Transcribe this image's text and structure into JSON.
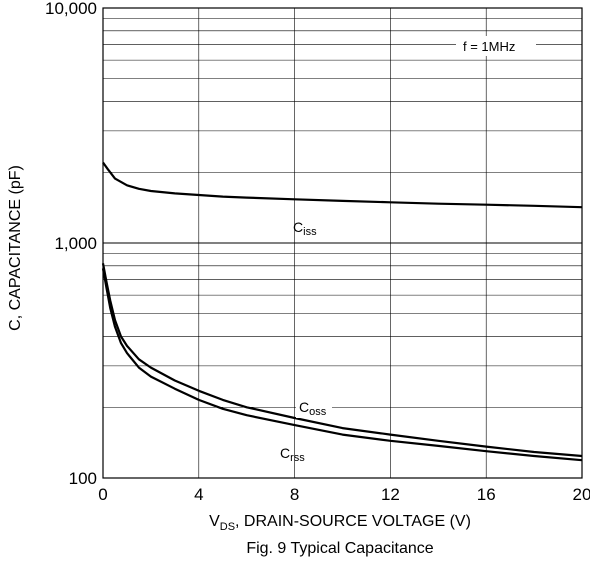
{
  "chart_data": {
    "type": "line",
    "title": "Fig. 9 Typical Capacitance",
    "xlabel": {
      "main": "V",
      "sub": "DS",
      "rest": ", DRAIN-SOURCE VOLTAGE (V)"
    },
    "ylabel": "C, CAPACITANCE (pF)",
    "annotation": "f = 1MHz",
    "x_ticks": [
      "0",
      "4",
      "8",
      "12",
      "16",
      "20"
    ],
    "y_ticks": [
      "100",
      "1,000",
      "10,000"
    ],
    "xlim": [
      0,
      20
    ],
    "ylim": [
      100,
      10000
    ],
    "yscale": "log",
    "grid": true,
    "series": [
      {
        "name": "Ciss",
        "label_main": "C",
        "label_sub": "iss",
        "x": [
          0,
          0.2,
          0.5,
          1,
          1.5,
          2,
          3,
          4,
          5,
          6,
          8,
          10,
          12,
          14,
          16,
          18,
          20
        ],
        "y": [
          2200,
          2060,
          1880,
          1760,
          1700,
          1665,
          1625,
          1600,
          1575,
          1560,
          1535,
          1510,
          1490,
          1470,
          1455,
          1440,
          1420
        ]
      },
      {
        "name": "Coss",
        "label_main": "C",
        "label_sub": "oss",
        "x": [
          0,
          0.15,
          0.3,
          0.5,
          0.75,
          1,
          1.5,
          2,
          3,
          4,
          5,
          6,
          8,
          10,
          12,
          14,
          16,
          18,
          20
        ],
        "y": [
          820,
          680,
          570,
          470,
          400,
          365,
          320,
          295,
          260,
          235,
          215,
          200,
          180,
          163,
          153,
          144,
          136,
          129,
          124
        ]
      },
      {
        "name": "Crss",
        "label_main": "C",
        "label_sub": "rss",
        "x": [
          0,
          0.15,
          0.3,
          0.5,
          0.75,
          1,
          1.5,
          2,
          3,
          4,
          5,
          6,
          8,
          10,
          12,
          14,
          16,
          18,
          20
        ],
        "y": [
          780,
          640,
          530,
          440,
          375,
          340,
          295,
          270,
          240,
          215,
          197,
          185,
          168,
          153,
          144,
          137,
          130,
          124,
          119
        ]
      }
    ]
  }
}
